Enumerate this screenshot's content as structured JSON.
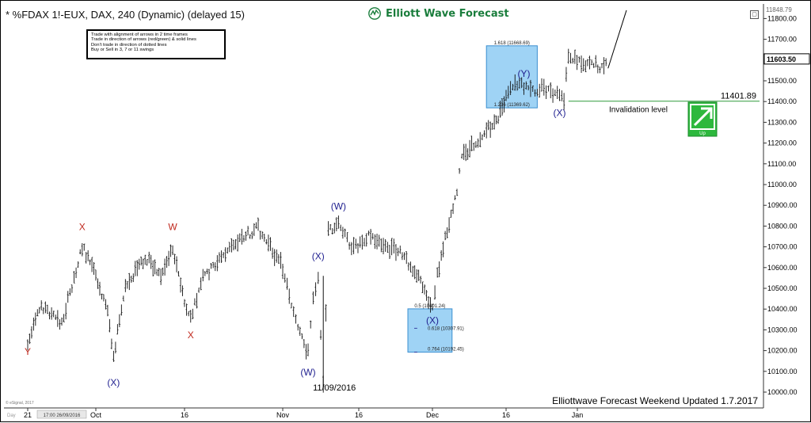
{
  "header": {
    "title": "* %FDAX 1!-EUX, DAX, 240 (Dynamic) (delayed 15)",
    "logo_text": "Elliott Wave Forecast",
    "settings_icon": "square-button-icon"
  },
  "rules": [
    "Trade with alignment of arrows in 2 time frames",
    "Trade in direction of arrows (red/green) & solid lines",
    "Don't trade in direction of dotted lines",
    "Buy or Sell in 3, 7 or 11 swings"
  ],
  "footer_text": "Elliottwave Forecast Weekend Updated 1.7.2017",
  "copyright_text": "© eSignal, 2017",
  "colors": {
    "wave_label_blue": "#1f1f8f",
    "wave_label_red": "#c0291e",
    "box_fill": "#9fd3f5",
    "box_stroke": "#3a8fd0",
    "invalidation_line": "#2e9a3a",
    "arrow_green": "#2db83d",
    "price_bar": "#111111"
  },
  "chart_data": {
    "type": "bar",
    "symbol": "%FDAX 1!-EUX",
    "y_axis": {
      "ticks": [
        "11800.00",
        "11700.00",
        "11600.00",
        "11500.00",
        "11400.00",
        "11300.00",
        "11200.00",
        "11100.00",
        "11000.00",
        "10900.00",
        "10800.00",
        "10700.00",
        "10600.00",
        "10500.00",
        "10400.00",
        "10300.00",
        "10200.00",
        "10100.00",
        "10000.00"
      ],
      "ylim": [
        9960,
        11860
      ],
      "last_price_label": "11603.50",
      "top_price_label": "11848.79"
    },
    "x_axis": {
      "ticks": [
        "21",
        "Oct",
        "16",
        "Nov",
        "16",
        "Dec",
        "16",
        "Jan"
      ],
      "cursor_label": "17:00 26/09/2016",
      "cursor_prefix": "Day"
    },
    "price_path": [
      {
        "date": "Sep 21",
        "price": 10230
      },
      {
        "date": "Sep 23",
        "price": 10420
      },
      {
        "date": "Sep 26",
        "price": 10330
      },
      {
        "date": "Sep 29",
        "price": 10700
      },
      {
        "date": "Oct 1",
        "price": 10560
      },
      {
        "date": "Oct 3",
        "price": 10390
      },
      {
        "date": "Oct 4",
        "price": 10180
      },
      {
        "date": "Oct 6",
        "price": 10500
      },
      {
        "date": "Oct 8",
        "price": 10600
      },
      {
        "date": "Oct 10",
        "price": 10640
      },
      {
        "date": "Oct 12",
        "price": 10560
      },
      {
        "date": "Oct 14",
        "price": 10700
      },
      {
        "date": "Oct 16",
        "price": 10430
      },
      {
        "date": "Oct 17",
        "price": 10350
      },
      {
        "date": "Oct 19",
        "price": 10550
      },
      {
        "date": "Oct 22",
        "price": 10650
      },
      {
        "date": "Oct 25",
        "price": 10740
      },
      {
        "date": "Oct 28",
        "price": 10790
      },
      {
        "date": "Nov 1",
        "price": 10600
      },
      {
        "date": "Nov 4",
        "price": 10300
      },
      {
        "date": "Nov 6",
        "price": 10190
      },
      {
        "date": "Nov 7",
        "price": 10460
      },
      {
        "date": "Nov 8",
        "price": 10560
      },
      {
        "date": "Nov 9",
        "price": 10020
      },
      {
        "date": "Nov 10",
        "price": 10780
      },
      {
        "date": "Nov 12",
        "price": 10800
      },
      {
        "date": "Nov 15",
        "price": 10690
      },
      {
        "date": "Nov 18",
        "price": 10760
      },
      {
        "date": "Nov 21",
        "price": 10700
      },
      {
        "date": "Nov 24",
        "price": 10680
      },
      {
        "date": "Nov 27",
        "price": 10600
      },
      {
        "date": "Nov 29",
        "price": 10520
      },
      {
        "date": "Dec 1",
        "price": 10400
      },
      {
        "date": "Dec 2",
        "price": 10560
      },
      {
        "date": "Dec 4",
        "price": 10780
      },
      {
        "date": "Dec 6",
        "price": 10980
      },
      {
        "date": "Dec 7",
        "price": 11130
      },
      {
        "date": "Dec 9",
        "price": 11180
      },
      {
        "date": "Dec 12",
        "price": 11260
      },
      {
        "date": "Dec 14",
        "price": 11300
      },
      {
        "date": "Dec 16",
        "price": 11420
      },
      {
        "date": "Dec 18",
        "price": 11480
      },
      {
        "date": "Dec 20",
        "price": 11470
      },
      {
        "date": "Dec 22",
        "price": 11450
      },
      {
        "date": "Dec 24",
        "price": 11470
      },
      {
        "date": "Dec 26",
        "price": 11440
      },
      {
        "date": "Dec 28",
        "price": 11420
      },
      {
        "date": "Dec 29",
        "price": 11405
      },
      {
        "date": "Dec 30",
        "price": 11620
      },
      {
        "date": "Jan 2",
        "price": 11580
      },
      {
        "date": "Jan 3",
        "price": 11600
      },
      {
        "date": "Jan 5",
        "price": 11560
      },
      {
        "date": "Jan 6",
        "price": 11600
      }
    ],
    "projection_line": [
      {
        "date": "Jan 6",
        "price": 11560
      },
      {
        "date": "Jan 9",
        "price": 11840
      }
    ],
    "wave_labels": [
      {
        "text": "X",
        "date": "Sep 29",
        "price": 10780,
        "color": "red"
      },
      {
        "text": "Y",
        "date": "Sep 21",
        "price": 10180,
        "color": "red"
      },
      {
        "text": "(X)",
        "date": "Oct 4",
        "price": 10030,
        "color": "blue"
      },
      {
        "text": "W",
        "date": "Oct 14",
        "price": 10780,
        "color": "red"
      },
      {
        "text": "X",
        "date": "Oct 17",
        "price": 10260,
        "color": "red"
      },
      {
        "text": "(W)",
        "date": "Nov 6",
        "price": 10080,
        "color": "blue"
      },
      {
        "text": "(X)",
        "date": "Nov 8",
        "price": 10640,
        "color": "blue"
      },
      {
        "text": "(W)",
        "date": "Nov 12",
        "price": 10880,
        "color": "blue"
      },
      {
        "text": "(X)",
        "date": "Dec 1",
        "price": 10330,
        "color": "blue"
      },
      {
        "text": "(Y)",
        "date": "Dec 20",
        "price": 11520,
        "color": "blue"
      },
      {
        "text": "(X)",
        "date": "Dec 28",
        "price": 11330,
        "color": "blue"
      }
    ],
    "blue_boxes": [
      {
        "label_top": "1.618 (11668.69)",
        "label_bottom": "1.236 (11369.62)",
        "price_top": 11668.69,
        "price_bottom": 11369.62,
        "date_start": "Dec 12",
        "date_end": "Dec 23"
      },
      {
        "label_top": "0.5 (10401.24)",
        "mid_label": "0.618 (10307.91)",
        "label_bottom": "0.764 (10192.45)",
        "price_top": 10401.24,
        "price_mid": 10307.91,
        "price_bottom": 10192.45,
        "date_start": "Nov 26",
        "date_end": "Dec 5"
      }
    ],
    "invalidation": {
      "label": "Invalidation level",
      "value_label": "11401.89",
      "price": 11401.89
    },
    "annotations": [
      {
        "text": "11/09/2016",
        "date": "Nov 9",
        "price": 10020
      }
    ],
    "direction_arrow": {
      "label": "Up"
    },
    "grid": false,
    "legend": "none"
  }
}
